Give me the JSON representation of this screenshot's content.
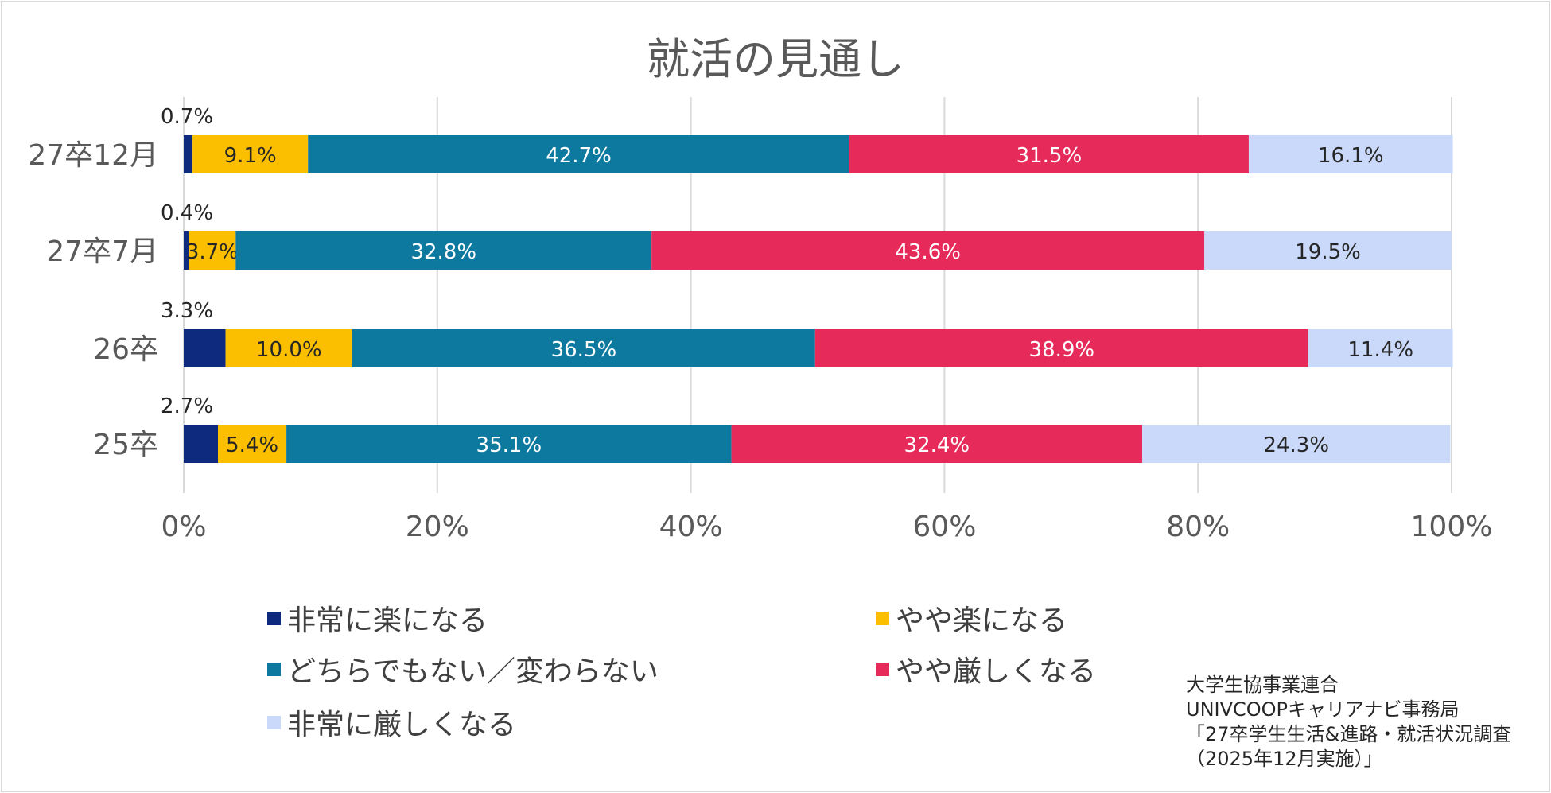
{
  "chart_data": {
    "type": "bar",
    "orientation": "horizontal",
    "stacked": "percent",
    "title": "就活の見通し",
    "categories": [
      "27卒12月",
      "27卒7月",
      "26卒",
      "25卒"
    ],
    "xlim": [
      0,
      100
    ],
    "xticks": [
      "0%",
      "20%",
      "40%",
      "60%",
      "80%",
      "100%"
    ],
    "grid": true,
    "legend_position": "bottom",
    "series": [
      {
        "name": "非常に楽になる",
        "color": "#0e2a7f",
        "label_color": "#262626",
        "label_outside": true,
        "values": [
          0.7,
          0.4,
          3.3,
          2.7
        ],
        "labels": [
          "0.7%",
          "0.4%",
          "3.3%",
          "2.7%"
        ]
      },
      {
        "name": "やや楽になる",
        "color": "#fcbf00",
        "label_color": "#262626",
        "label_outside": false,
        "values": [
          9.1,
          3.7,
          10.0,
          5.4
        ],
        "labels": [
          "9.1%",
          "3.7%",
          "10.0%",
          "5.4%"
        ]
      },
      {
        "name": "どちらでもない／変わらない",
        "color": "#0e799f",
        "label_color": "#ffffff",
        "label_outside": false,
        "values": [
          42.7,
          32.8,
          36.5,
          35.1
        ],
        "labels": [
          "42.7%",
          "32.8%",
          "36.5%",
          "35.1%"
        ]
      },
      {
        "name": "やや厳しくなる",
        "color": "#e62a59",
        "label_color": "#ffffff",
        "label_outside": false,
        "values": [
          31.5,
          43.6,
          38.9,
          32.4
        ],
        "labels": [
          "31.5%",
          "43.6%",
          "38.9%",
          "32.4%"
        ]
      },
      {
        "name": "非常に厳しくなる",
        "color": "#cad9f9",
        "label_color": "#262626",
        "label_outside": false,
        "values": [
          16.1,
          19.5,
          11.4,
          24.3
        ],
        "labels": [
          "16.1%",
          "19.5%",
          "11.4%",
          "24.3%"
        ]
      }
    ]
  },
  "source": {
    "line1": "大学生協事業連合",
    "line2": "UNIVCOOPキャリアナビ事務局",
    "line3": "「27卒学生生活&進路・就活状況調査",
    "line4": "（2025年12月実施）」"
  }
}
